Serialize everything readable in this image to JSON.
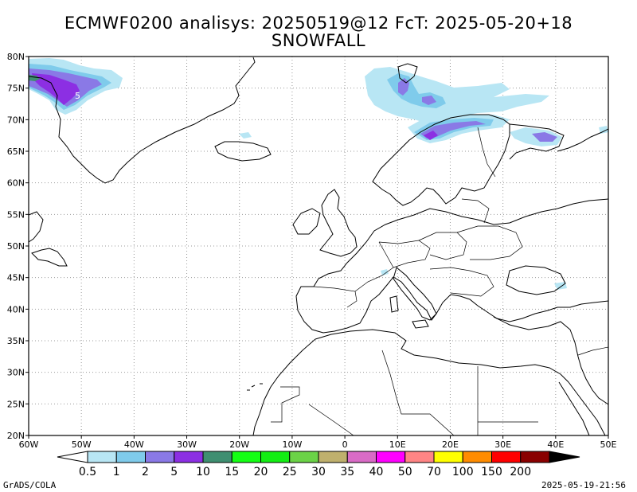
{
  "title": {
    "line1": "ECMWF0200 analisys: 20250519@12 FcT: 2025-05-20+18",
    "line2": "SNOWFALL"
  },
  "map": {
    "region": "Europe / North Atlantic",
    "lon_range": [
      -60,
      50
    ],
    "lat_range": [
      20,
      80
    ],
    "grid": true,
    "x_ticks": [
      "60W",
      "50W",
      "40W",
      "30W",
      "20W",
      "10W",
      "0",
      "10E",
      "20E",
      "30E",
      "40E",
      "50E"
    ],
    "y_ticks": [
      "20N",
      "25N",
      "30N",
      "35N",
      "40N",
      "45N",
      "50N",
      "55N",
      "60N",
      "65N",
      "70N",
      "75N",
      "80N"
    ],
    "contour_label": "5"
  },
  "colorbar": {
    "labels": [
      "0.5",
      "1",
      "2",
      "5",
      "10",
      "15",
      "20",
      "25",
      "30",
      "35",
      "40",
      "50",
      "70",
      "100",
      "150",
      "200"
    ],
    "colors": [
      "#ffffff",
      "#b8e6f4",
      "#7fcbeb",
      "#8a79e6",
      "#8c2fe3",
      "#3f8f71",
      "#14ff14",
      "#13ee13",
      "#6bd347",
      "#bfb06d",
      "#d96bc6",
      "#ff00ff",
      "#ff8585",
      "#ffff00",
      "#ff8c00",
      "#ff0000",
      "#8a0000",
      "#000000"
    ]
  },
  "footer": {
    "left": "GrADS/COLA",
    "right": "2025-05-19-21:56"
  }
}
